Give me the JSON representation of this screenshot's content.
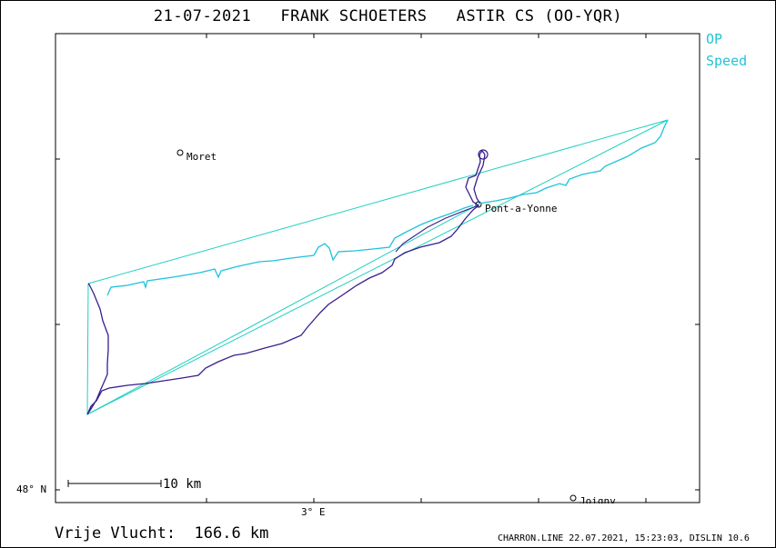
{
  "title": "21-07-2021   FRANK SCHOETERS   ASTIR CS (OO-YQR)",
  "legend": {
    "op": "OP",
    "speed": "Speed",
    "op_color": "#1fd0c0",
    "speed_color": "#1ec2dc",
    "track_color": "#3a1e8e"
  },
  "axes": {
    "lat_label": "48° N",
    "lon_label": "3° E"
  },
  "scale": {
    "label": "10 km"
  },
  "places": [
    {
      "name": "Moret"
    },
    {
      "name": "Pont-a-Yonne"
    },
    {
      "name": "Joigny"
    }
  ],
  "footer": {
    "distance": "Vrije Vlucht:  166.6 km",
    "info": "CHARRON.LINE 22.07.2021, 15:23:03, DISLIN 10.6"
  }
}
